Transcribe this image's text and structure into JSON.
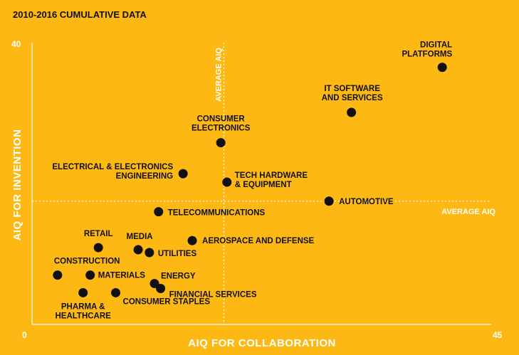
{
  "page": {
    "title": "2010-2016 CUMULATIVE DATA"
  },
  "colors": {
    "background": "#FDB813",
    "axis": "#ffffff",
    "point": "#111111",
    "text": "#111111"
  },
  "chart_data": {
    "type": "scatter",
    "xlabel": "AIQ FOR COLLABORATION",
    "ylabel": "AIQ FOR INVENTION",
    "xlim": [
      0,
      45
    ],
    "ylim": [
      0,
      40
    ],
    "x_ticks": [
      "0",
      "45"
    ],
    "y_ticks": [
      "40"
    ],
    "grid": false,
    "reference_lines": {
      "vertical": {
        "label": "AVERAGE AIQ",
        "x": 18.8
      },
      "horizontal": {
        "label": "AVERAGE AIQ",
        "y": 17.5
      }
    },
    "points": [
      {
        "label": "DIGITAL PLATFORMS",
        "x": 40.2,
        "y": 36.5
      },
      {
        "label": "IT SOFTWARE AND SERVICES",
        "x": 31.3,
        "y": 30.1
      },
      {
        "label": "CONSUMER ELECTRONICS",
        "x": 18.5,
        "y": 25.8
      },
      {
        "label": "ELECTRICAL & ELECTRONICS ENGINEERING",
        "x": 14.8,
        "y": 21.4
      },
      {
        "label": "TECH HARDWARE & EQUIPMENT",
        "x": 19.1,
        "y": 20.2
      },
      {
        "label": "AUTOMOTIVE",
        "x": 29.1,
        "y": 17.5
      },
      {
        "label": "TELECOMMUNICATIONS",
        "x": 12.4,
        "y": 16.0
      },
      {
        "label": "AEROSPACE AND DEFENSE",
        "x": 15.7,
        "y": 11.9
      },
      {
        "label": "RETAIL",
        "x": 6.5,
        "y": 10.9
      },
      {
        "label": "MEDIA",
        "x": 10.4,
        "y": 10.6
      },
      {
        "label": "UTILITIES",
        "x": 11.5,
        "y": 10.2
      },
      {
        "label": "CONSTRUCTION",
        "x": 2.5,
        "y": 7.0
      },
      {
        "label": "MATERIALS",
        "x": 5.7,
        "y": 7.0
      },
      {
        "label": "ENERGY",
        "x": 12.0,
        "y": 5.8
      },
      {
        "label": "FINANCIAL SERVICES",
        "x": 12.6,
        "y": 5.1
      },
      {
        "label": "PHARMA & HEALTHCARE",
        "x": 5.0,
        "y": 4.5
      },
      {
        "label": "CONSUMER STAPLES",
        "x": 8.2,
        "y": 4.5
      }
    ]
  }
}
